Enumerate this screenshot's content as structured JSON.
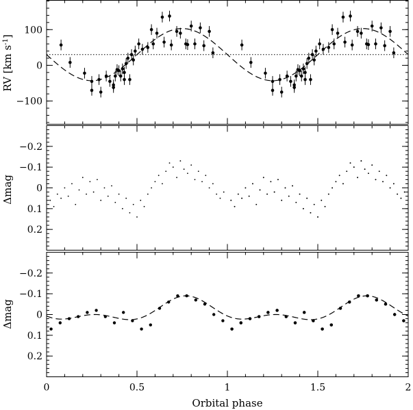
{
  "chart_data": [
    {
      "type": "scatter",
      "panel": "radial-velocity",
      "ylabel_main": "RV [km s",
      "ylabel_sup": "-1",
      "ylabel_close": "]",
      "xlabel": "",
      "xlim": [
        0,
        2
      ],
      "ylim": [
        -165,
        182
      ],
      "y_inverted": false,
      "yticks": [
        100,
        0,
        -100
      ],
      "ytick_labels": [
        "100",
        "0",
        "−100"
      ],
      "reference_line": {
        "style": "dotted",
        "y": 30
      },
      "model": {
        "style": "dashed",
        "form": "sine",
        "offset": 30,
        "amplitude": 73,
        "peak_phase": 0.75
      },
      "series": [
        {
          "style": "points-with-errorbars",
          "x": [
            0.08,
            0.13,
            0.21,
            0.25,
            0.25,
            0.29,
            0.3,
            0.33,
            0.35,
            0.37,
            0.37,
            0.38,
            0.39,
            0.4,
            0.41,
            0.42,
            0.43,
            0.43,
            0.44,
            0.45,
            0.46,
            0.47,
            0.48,
            0.49,
            0.51,
            0.53,
            0.56,
            0.58,
            0.59,
            0.61,
            0.64,
            0.65,
            0.68,
            0.69,
            0.72,
            0.74,
            0.77,
            0.78,
            0.8,
            0.82,
            0.85,
            0.87,
            0.9,
            0.92
          ],
          "y": [
            57,
            8,
            -22,
            -70,
            -45,
            -40,
            -75,
            -30,
            -45,
            -55,
            -62,
            -30,
            -12,
            -15,
            -30,
            -10,
            -40,
            -20,
            5,
            20,
            -40,
            30,
            15,
            40,
            60,
            45,
            50,
            100,
            60,
            90,
            135,
            65,
            138,
            57,
            95,
            90,
            60,
            58,
            110,
            60,
            105,
            55,
            95,
            35
          ],
          "yerr": [
            15,
            15,
            15,
            15,
            15,
            15,
            15,
            15,
            15,
            15,
            15,
            15,
            15,
            15,
            15,
            15,
            15,
            15,
            15,
            15,
            15,
            15,
            15,
            15,
            15,
            15,
            15,
            15,
            15,
            15,
            15,
            15,
            15,
            15,
            15,
            15,
            15,
            15,
            15,
            15,
            15,
            15,
            15,
            15
          ]
        }
      ]
    },
    {
      "type": "scatter",
      "panel": "photometry",
      "ylabel": "Δmag",
      "xlabel": "",
      "xlim": [
        0,
        2
      ],
      "ylim": [
        0.3,
        -0.3
      ],
      "y_inverted": true,
      "yticks": [
        -0.2,
        -0.1,
        0,
        0.1,
        0.2
      ],
      "ytick_labels": [
        "−0.2",
        "−0.1",
        "0",
        "0.1",
        "0.2"
      ],
      "series": [
        {
          "style": "small-dots",
          "x": [
            0.02,
            0.04,
            0.06,
            0.08,
            0.1,
            0.12,
            0.14,
            0.16,
            0.18,
            0.2,
            0.22,
            0.24,
            0.26,
            0.28,
            0.3,
            0.32,
            0.34,
            0.36,
            0.38,
            0.4,
            0.42,
            0.44,
            0.46,
            0.48,
            0.5,
            0.52,
            0.54,
            0.56,
            0.58,
            0.6,
            0.62,
            0.64,
            0.66,
            0.68,
            0.7,
            0.72,
            0.74,
            0.76,
            0.78,
            0.8,
            0.82,
            0.84,
            0.86,
            0.88,
            0.9,
            0.92,
            0.94,
            0.96,
            0.98,
            1.02,
            1.04,
            1.06,
            1.08,
            1.1,
            1.12,
            1.14,
            1.16,
            1.18,
            1.2,
            1.22,
            1.24,
            1.26,
            1.28,
            1.3,
            1.32,
            1.34,
            1.36,
            1.38,
            1.4,
            1.42,
            1.44,
            1.46,
            1.48,
            1.5,
            1.52,
            1.54,
            1.56,
            1.58,
            1.6,
            1.62,
            1.64,
            1.66,
            1.68,
            1.7,
            1.72,
            1.74,
            1.76,
            1.78,
            1.8,
            1.82,
            1.84,
            1.86,
            1.88,
            1.9,
            1.92,
            1.94,
            1.96,
            1.98
          ],
          "y": [
            0.06,
            0.09,
            0.03,
            0.05,
            0.0,
            0.04,
            -0.02,
            0.08,
            0.01,
            -0.05,
            0.03,
            -0.03,
            0.02,
            -0.04,
            0.06,
            0.0,
            0.04,
            -0.01,
            0.07,
            0.03,
            0.1,
            0.05,
            0.12,
            0.08,
            0.14,
            0.06,
            0.09,
            0.03,
            0.0,
            -0.03,
            -0.06,
            -0.02,
            -0.08,
            -0.12,
            -0.1,
            -0.05,
            -0.13,
            -0.09,
            -0.07,
            -0.11,
            -0.04,
            -0.08,
            -0.03,
            -0.06,
            0.0,
            -0.02,
            0.03,
            0.05,
            0.02,
            0.06,
            0.09,
            0.03,
            0.05,
            0.0,
            0.04,
            -0.02,
            0.08,
            0.01,
            -0.05,
            0.03,
            -0.03,
            0.02,
            -0.04,
            0.06,
            0.0,
            0.04,
            -0.01,
            0.07,
            0.03,
            0.1,
            0.05,
            0.12,
            0.08,
            0.14,
            0.06,
            0.09,
            0.03,
            0.0,
            -0.03,
            -0.06,
            -0.02,
            -0.08,
            -0.12,
            -0.1,
            -0.05,
            -0.13,
            -0.09,
            -0.07,
            -0.11,
            -0.04,
            -0.08,
            -0.03,
            -0.06,
            0.0,
            -0.02,
            0.03,
            0.05,
            0.02
          ]
        }
      ]
    },
    {
      "type": "scatter",
      "panel": "binned-photometry",
      "ylabel": "Δmag",
      "xlabel": "Orbital phase",
      "xlim": [
        0,
        2
      ],
      "ylim": [
        0.3,
        -0.3
      ],
      "y_inverted": true,
      "yticks": [
        -0.2,
        -0.1,
        0,
        0.1,
        0.2
      ],
      "ytick_labels": [
        "−0.2",
        "−0.1",
        "0",
        "0.1",
        "0.2"
      ],
      "xticks": [
        0,
        0.5,
        1,
        1.5,
        2
      ],
      "xtick_labels": [
        "0",
        "0.5",
        "1",
        "1.5",
        "2"
      ],
      "model": {
        "style": "dashed",
        "form": "double-wave",
        "offset": -0.015,
        "a1": 0.045,
        "peak1_phase": 0.775,
        "a2": 0.03,
        "peak2_phase": 0.27
      },
      "series": [
        {
          "style": "points",
          "x": [
            0.025,
            0.075,
            0.125,
            0.175,
            0.225,
            0.275,
            0.325,
            0.375,
            0.425,
            0.475,
            0.525,
            0.575,
            0.625,
            0.675,
            0.725,
            0.775,
            0.825,
            0.875,
            0.925,
            0.975,
            1.025,
            1.075,
            1.125,
            1.175,
            1.225,
            1.275,
            1.325,
            1.375,
            1.425,
            1.475,
            1.525,
            1.575,
            1.625,
            1.675,
            1.725,
            1.775,
            1.825,
            1.875,
            1.925,
            1.975
          ],
          "y": [
            0.07,
            0.04,
            0.02,
            0.01,
            -0.01,
            -0.02,
            0.01,
            0.04,
            -0.01,
            0.03,
            0.07,
            0.05,
            -0.03,
            -0.06,
            -0.09,
            -0.09,
            -0.07,
            -0.05,
            0.0,
            0.03,
            0.07,
            0.04,
            0.02,
            0.01,
            -0.01,
            -0.02,
            0.01,
            0.04,
            -0.01,
            0.03,
            0.07,
            0.05,
            -0.03,
            -0.06,
            -0.09,
            -0.09,
            -0.07,
            -0.05,
            0.0,
            0.03
          ]
        }
      ]
    }
  ]
}
